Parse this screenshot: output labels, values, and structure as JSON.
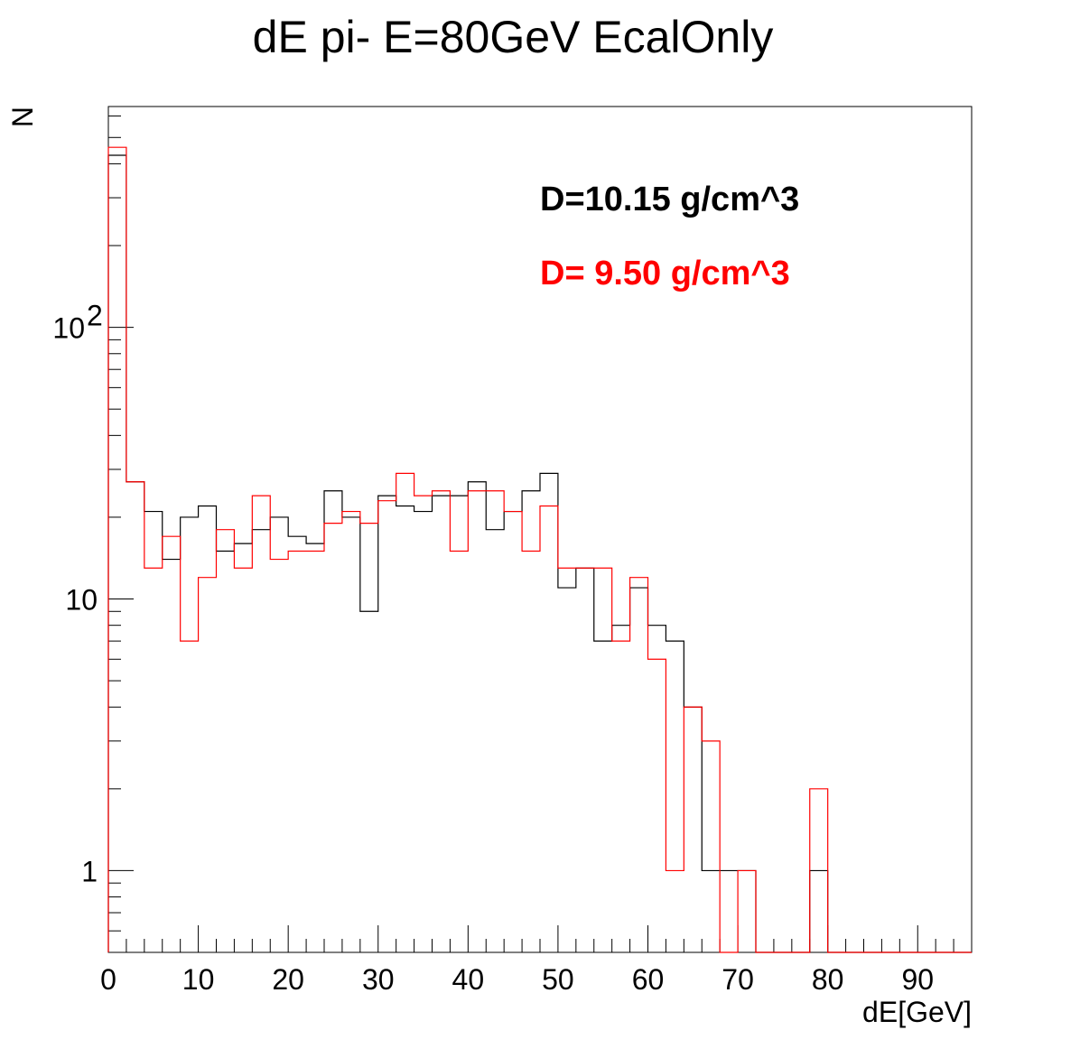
{
  "chart_data": {
    "type": "histogram",
    "title": "dE pi- E=80GeV EcalOnly",
    "xlabel": "dE[GeV]",
    "ylabel": "N",
    "x_range": [
      0,
      96
    ],
    "y_range": [
      0.5,
      650
    ],
    "y_scale": "log",
    "bin_width": 2,
    "x_ticks": [
      0,
      10,
      20,
      30,
      40,
      50,
      60,
      70,
      80,
      90
    ],
    "x_tick_labels": [
      "0",
      "10",
      "20",
      "30",
      "40",
      "50",
      "60",
      "70",
      "80",
      "90"
    ],
    "y_ticks": [
      {
        "value": 1,
        "base": "1",
        "exp": ""
      },
      {
        "value": 10,
        "base": "10",
        "exp": ""
      },
      {
        "value": 100,
        "base": "10",
        "exp": "2"
      }
    ],
    "series": [
      {
        "name": "D=10.15 g/cm^3",
        "color": "#000000",
        "values": [
          430,
          27,
          21,
          14,
          20,
          22,
          15,
          16,
          18,
          20,
          17,
          16,
          25,
          20,
          9,
          24,
          22,
          21,
          24,
          24,
          27,
          18,
          21,
          25,
          29,
          11,
          13,
          7,
          8,
          11,
          8,
          7,
          4,
          1,
          1,
          1,
          0,
          0,
          0,
          1,
          0,
          0,
          0,
          0,
          0,
          0,
          0,
          0
        ]
      },
      {
        "name": "D= 9.50 g/cm^3",
        "color": "#ff0000",
        "values": [
          460,
          27,
          13,
          17,
          7,
          12,
          18,
          13,
          24,
          14,
          15,
          15,
          19,
          21,
          19,
          23,
          29,
          24,
          25,
          15,
          25,
          25,
          21,
          15,
          22,
          13,
          13,
          13,
          7,
          12,
          6,
          1,
          4,
          3,
          0,
          1,
          0,
          0,
          0,
          2,
          0,
          0,
          0,
          0,
          0,
          0,
          0,
          0
        ]
      }
    ]
  }
}
